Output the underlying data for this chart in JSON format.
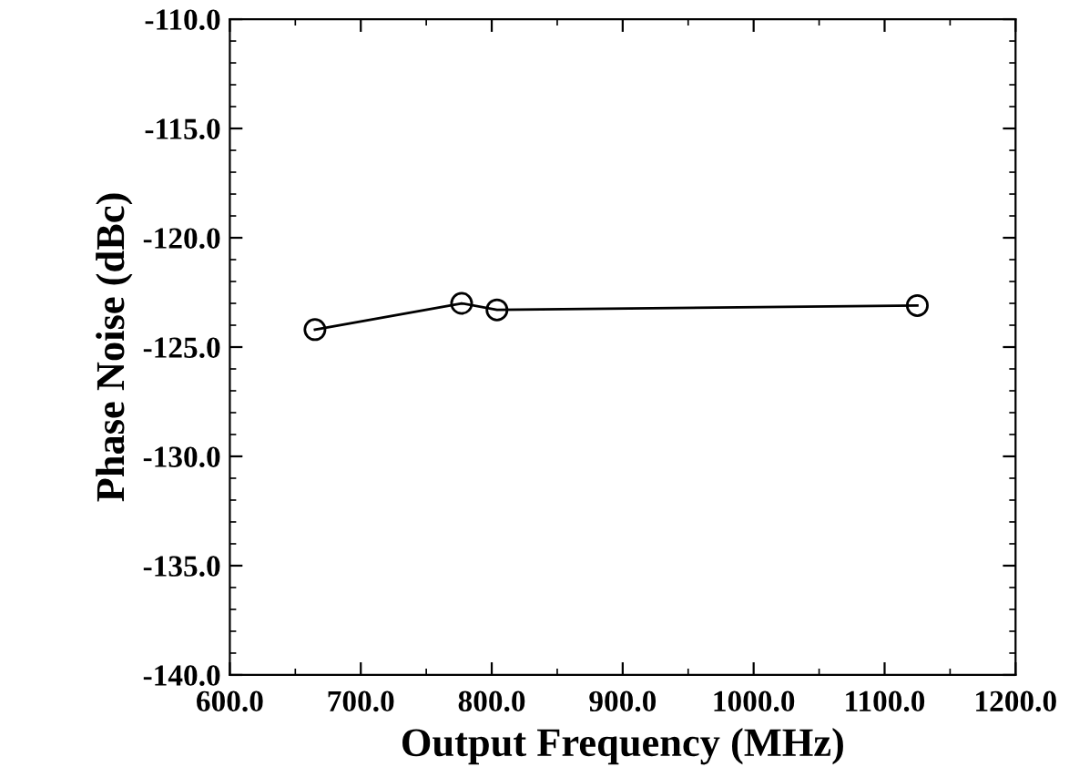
{
  "chart_data": {
    "type": "line",
    "xlabel": "Output Frequency (MHz)",
    "ylabel": "Phase Noise (dBc)",
    "x": [
      665,
      777,
      804,
      1125
    ],
    "series": [
      {
        "color": "#000000",
        "values": [
          -124.2,
          -123.0,
          -123.3,
          -123.1
        ]
      }
    ],
    "marker": "circle",
    "line_style": "solid",
    "grid": false,
    "legend": false,
    "xlim": [
      600,
      1200
    ],
    "xticks": [
      {
        "value": 600,
        "label": "600.0"
      },
      {
        "value": 700,
        "label": "700.0"
      },
      {
        "value": 800,
        "label": "800.0"
      },
      {
        "value": 900,
        "label": "900.0"
      },
      {
        "value": 1000,
        "label": "1000.0"
      },
      {
        "value": 1100,
        "label": "1100.0"
      },
      {
        "value": 1200,
        "label": "1200.0"
      }
    ],
    "ylim": [
      -140,
      -110
    ],
    "yticks": [
      {
        "value": -140,
        "label": "-140.0"
      },
      {
        "value": -135,
        "label": "-135.0"
      },
      {
        "value": -130,
        "label": "-130.0"
      },
      {
        "value": -125,
        "label": "-125.0"
      },
      {
        "value": -120,
        "label": "-120.0"
      },
      {
        "value": -115,
        "label": "-115.0"
      },
      {
        "value": -110,
        "label": "-110.0"
      }
    ]
  }
}
